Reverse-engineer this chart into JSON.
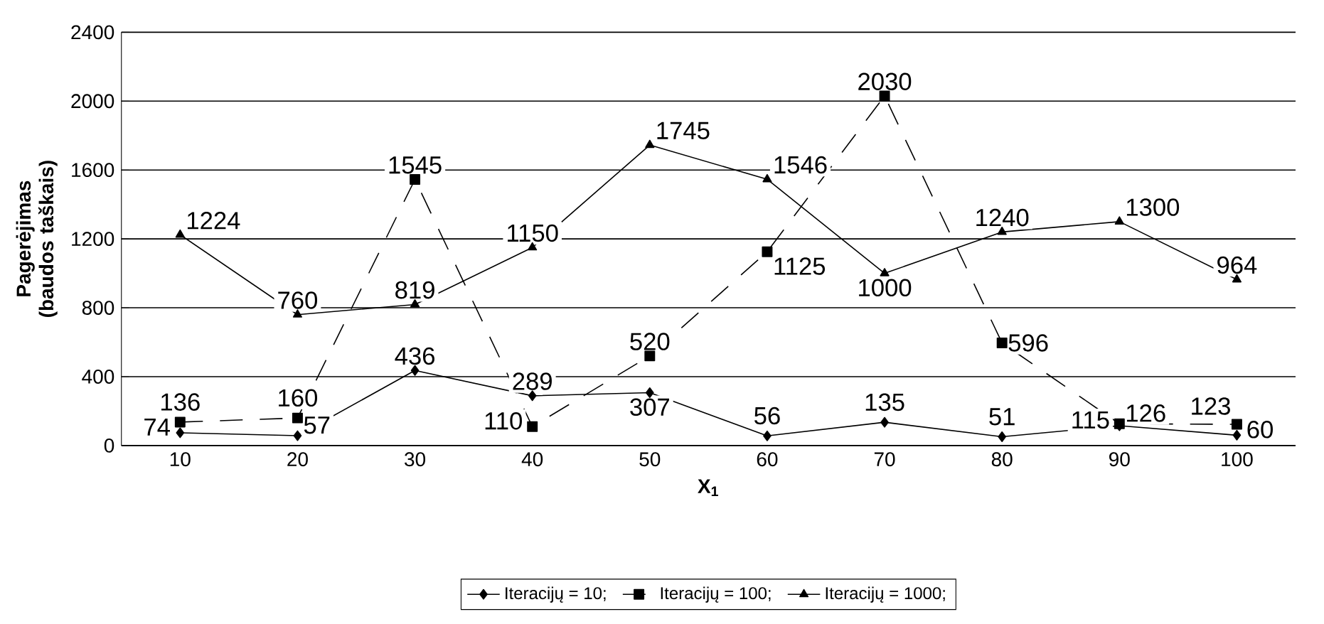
{
  "chart_data": {
    "type": "line",
    "xlabel": "X$_{1}$",
    "ylabel": "Pagerėjimas (baudos taškais)",
    "categories": [
      "10",
      "20",
      "30",
      "40",
      "50",
      "60",
      "70",
      "80",
      "90",
      "100"
    ],
    "series": [
      {
        "name": "Iteracijų = 10;",
        "color": "#000000",
        "marker": "diamond",
        "line_style": "solid",
        "values": [
          74,
          57,
          436,
          289,
          307,
          56,
          135,
          51,
          115,
          60
        ]
      },
      {
        "name": "Iteracijų = 100;",
        "color": "#000000",
        "marker": "square",
        "line_style": "dashed",
        "values": [
          136,
          160,
          1545,
          110,
          520,
          1125,
          2030,
          596,
          126,
          123
        ]
      },
      {
        "name": "Iteracijų = 1000;",
        "color": "#000000",
        "marker": "triangle",
        "line_style": "solid",
        "values": [
          1224,
          760,
          819,
          1150,
          1745,
          1546,
          1000,
          1240,
          1300,
          964
        ]
      }
    ],
    "ylim": [
      0,
      2400
    ],
    "yticks": [
      0,
      400,
      800,
      1200,
      1600,
      2000,
      2400
    ],
    "grid": "y",
    "legend": "bottom",
    "data_labels": true
  }
}
